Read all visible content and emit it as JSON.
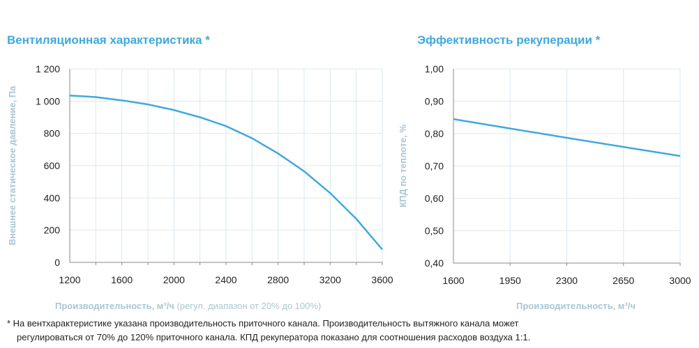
{
  "footnote": {
    "line1": "* На вентхарактеристике указана производительность приточного канала. Производительность вытяжного канала может",
    "line2": "регулироваться от 70% до 120% приточного канала. КПД рекуператора показано для соотношения расходов воздуха 1:1."
  },
  "chart_data": [
    {
      "type": "line",
      "title": "Вентиляционная характеристика *",
      "xlabel": "Производительность, м³/ч",
      "xlabel_note": "(регул. диапазон от 20% до 100%)",
      "ylabel": "Внешнее статическое давление, Па",
      "xlim": [
        1200,
        3600
      ],
      "ylim": [
        0,
        1200
      ],
      "grid": true,
      "color": "#3fa9dc",
      "xticks": [
        "1200",
        "1600",
        "2000",
        "2400",
        "2800",
        "3200",
        "3600"
      ],
      "yticks": [
        "0",
        "200",
        "400",
        "600",
        "800",
        "1 000",
        "1 200"
      ],
      "x": [
        1200,
        1400,
        1600,
        1800,
        2000,
        2200,
        2400,
        2600,
        2800,
        3000,
        3200,
        3400,
        3600
      ],
      "y": [
        1035,
        1025,
        1005,
        980,
        945,
        900,
        845,
        770,
        675,
        565,
        430,
        270,
        80
      ]
    },
    {
      "type": "line",
      "title": "Эффективность рекуперации *",
      "xlabel": "Производительность, м³/ч",
      "ylabel": "КПД по теплоте, %",
      "xlim": [
        1600,
        3000
      ],
      "ylim": [
        0.4,
        1.0
      ],
      "grid": true,
      "color": "#3fa9dc",
      "xticks": [
        "1600",
        "1950",
        "2300",
        "2650",
        "3000"
      ],
      "yticks": [
        "0,40",
        "0,50",
        "0,60",
        "0,70",
        "0,80",
        "0,90",
        "1,00"
      ],
      "x": [
        1600,
        1950,
        2300,
        2650,
        3000
      ],
      "y": [
        0.845,
        0.816,
        0.787,
        0.759,
        0.731
      ]
    }
  ]
}
